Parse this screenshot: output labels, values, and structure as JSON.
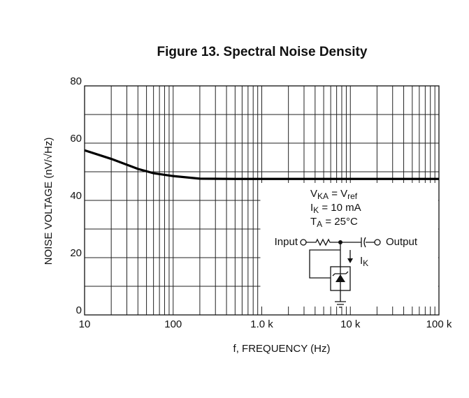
{
  "chart_data": {
    "type": "line",
    "title": "Figure 13. Spectral Noise Density",
    "x_label": "f, FREQUENCY (Hz)",
    "y_label": "NOISE VOLTAGE (nV/√Hz)",
    "x_scale": "log",
    "grid": true,
    "minor_grid": true,
    "xlim": [
      10,
      100000
    ],
    "ylim": [
      0,
      80
    ],
    "xticks": [
      10,
      100,
      {
        "value": 1000,
        "label": "1.0 k"
      },
      {
        "value": 10000,
        "label": "10 k"
      },
      {
        "value": 100000,
        "label": "100 k"
      }
    ],
    "yticks": [
      0,
      20,
      40,
      60,
      80
    ],
    "x": [
      10,
      20,
      40,
      60,
      100,
      200,
      500,
      1000,
      10000,
      100000
    ],
    "series": [
      {
        "color": "#000000",
        "values": [
          57.5,
          54.5,
          51,
          49.5,
          48.5,
          47.6,
          47.5,
          47.5,
          47.5,
          47.5
        ]
      }
    ],
    "inset": {
      "conditions": [
        [
          "V",
          "KA",
          " = V",
          "ref"
        ],
        [
          "I",
          "K",
          " = 10 mA"
        ],
        [
          "T",
          "A",
          " = 25°C"
        ]
      ],
      "input_label": "Input",
      "output_label": "Output",
      "current_label": [
        "I",
        "K"
      ]
    }
  }
}
